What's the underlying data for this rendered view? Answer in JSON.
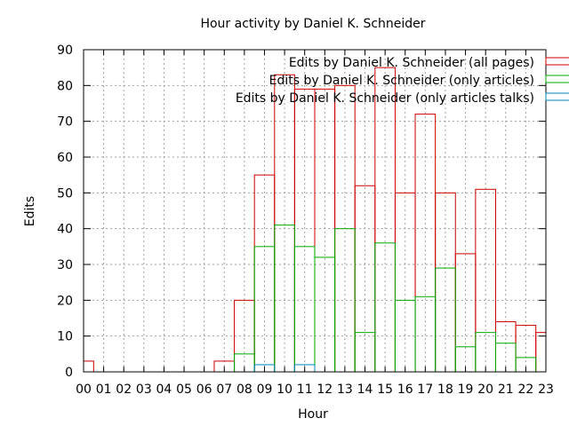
{
  "chart_data": {
    "type": "bar",
    "title": "Hour activity by Daniel K. Schneider",
    "xlabel": "Hour",
    "ylabel": "Edits",
    "ylim": [
      0,
      90
    ],
    "yticks": [
      0,
      10,
      20,
      30,
      40,
      50,
      60,
      70,
      80,
      90
    ],
    "grid": true,
    "legend_position": "top-right",
    "categories": [
      "00",
      "01",
      "02",
      "03",
      "04",
      "05",
      "06",
      "07",
      "08",
      "09",
      "10",
      "11",
      "12",
      "13",
      "14",
      "15",
      "16",
      "17",
      "18",
      "19",
      "20",
      "21",
      "22",
      "23"
    ],
    "series": [
      {
        "name": "Edits by Daniel K. Schneider (all pages)",
        "color": "#cc0000",
        "values": [
          3,
          0,
          0,
          0,
          0,
          0,
          0,
          3,
          20,
          55,
          83,
          79,
          79,
          80,
          52,
          85,
          50,
          72,
          50,
          33,
          51,
          14,
          13,
          11
        ]
      },
      {
        "name": "Edits by Daniel K. Schneider (only articles)",
        "color": "#00aa00",
        "values": [
          0,
          0,
          0,
          0,
          0,
          0,
          0,
          0,
          5,
          35,
          41,
          35,
          32,
          40,
          11,
          36,
          20,
          21,
          29,
          7,
          11,
          8,
          4,
          0
        ]
      },
      {
        "name": "Edits by Daniel K. Schneider (only articles talks)",
        "color": "#0088bb",
        "values": [
          0,
          0,
          0,
          0,
          0,
          0,
          0,
          0,
          0,
          2,
          0,
          2,
          0,
          0,
          0,
          0,
          0,
          0,
          0,
          0,
          0,
          0,
          0,
          0
        ]
      }
    ]
  }
}
